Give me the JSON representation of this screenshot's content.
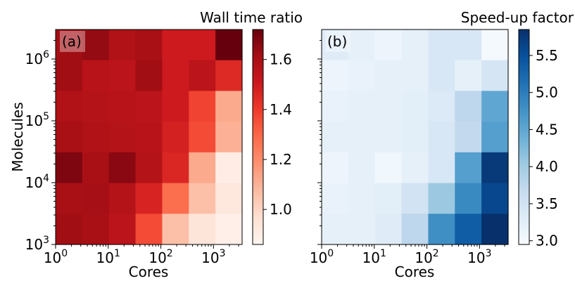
{
  "chart_data": [
    {
      "type": "heatmap",
      "panel_label": "(a)",
      "colorbar_title": "Wall time ratio",
      "xlabel": "Cores",
      "ylabel": "Molecules",
      "x_scale": "log",
      "y_scale": "log",
      "xlim": [
        1,
        3500
      ],
      "ylim": [
        1000,
        3000000
      ],
      "x_ticks": [
        {
          "base": "10",
          "exp": "0"
        },
        {
          "base": "10",
          "exp": "1"
        },
        {
          "base": "10",
          "exp": "2"
        },
        {
          "base": "10",
          "exp": "3"
        }
      ],
      "y_ticks": [
        {
          "base": "10",
          "exp": "3"
        },
        {
          "base": "10",
          "exp": "4"
        },
        {
          "base": "10",
          "exp": "5"
        },
        {
          "base": "10",
          "exp": "6"
        }
      ],
      "colormap": "Reds",
      "colorbar_range": [
        0.86,
        1.72
      ],
      "colorbar_ticks": [
        "1.0",
        "1.2",
        "1.4",
        "1.6"
      ],
      "rows_from_top": [
        [
          1.62,
          1.64,
          1.58,
          1.6,
          1.5,
          1.5,
          1.72
        ],
        [
          1.62,
          1.56,
          1.55,
          1.62,
          1.5,
          1.55,
          1.45
        ],
        [
          1.58,
          1.57,
          1.56,
          1.55,
          1.5,
          1.38,
          1.12
        ],
        [
          1.6,
          1.58,
          1.57,
          1.56,
          1.48,
          1.36,
          1.1
        ],
        [
          1.68,
          1.6,
          1.66,
          1.57,
          1.46,
          1.12,
          0.9
        ],
        [
          1.6,
          1.61,
          1.57,
          1.47,
          1.28,
          1.06,
          0.93
        ],
        [
          1.62,
          1.6,
          1.55,
          1.36,
          1.06,
          0.94,
          0.89
        ]
      ]
    },
    {
      "type": "heatmap",
      "panel_label": "(b)",
      "colorbar_title": "Speed-up factor",
      "xlabel": "Cores",
      "x_scale": "log",
      "y_scale": "log",
      "xlim": [
        1,
        3500
      ],
      "ylim": [
        1000,
        3000000
      ],
      "x_ticks": [
        {
          "base": "10",
          "exp": "0"
        },
        {
          "base": "10",
          "exp": "1"
        },
        {
          "base": "10",
          "exp": "2"
        },
        {
          "base": "10",
          "exp": "3"
        }
      ],
      "colormap": "Blues",
      "colorbar_range": [
        2.95,
        5.85
      ],
      "colorbar_ticks": [
        "3.0",
        "3.5",
        "4.0",
        "4.5",
        "5.0",
        "5.5"
      ],
      "rows_from_top": [
        [
          3.3,
          3.2,
          3.1,
          3.2,
          3.4,
          3.4,
          3.0
        ],
        [
          3.1,
          3.15,
          3.2,
          3.2,
          3.4,
          3.2,
          3.45
        ],
        [
          3.15,
          3.2,
          3.2,
          3.25,
          3.35,
          3.75,
          4.5
        ],
        [
          3.2,
          3.2,
          3.2,
          3.25,
          3.4,
          3.7,
          4.6
        ],
        [
          3.1,
          3.2,
          3.05,
          3.2,
          3.4,
          4.6,
          5.75
        ],
        [
          3.15,
          3.2,
          3.25,
          3.5,
          4.05,
          4.85,
          5.6
        ],
        [
          3.2,
          3.2,
          3.3,
          3.75,
          4.8,
          5.35,
          5.85
        ]
      ]
    }
  ]
}
